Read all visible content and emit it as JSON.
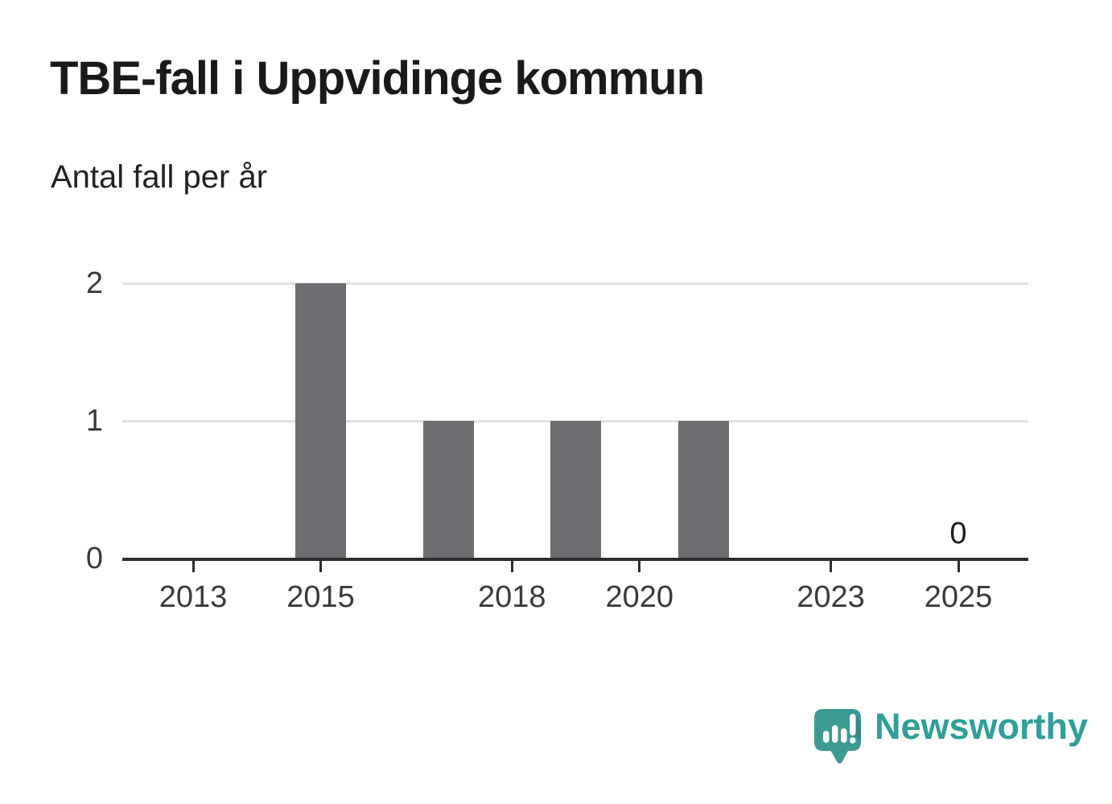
{
  "title": "TBE-fall i Uppvidinge kommun",
  "subtitle": "Antal fall per år",
  "branding": {
    "logo_text": "Newsworthy",
    "logo_icon": "newsworthy-speech-bubble-bar-chart-icon"
  },
  "colors": {
    "bar": "#6e6d71",
    "grid": "#e1e1e1",
    "axis": "#2d2d2d",
    "tick_label": "#3a3a3a",
    "value_label": "#1a1a1a",
    "title": "#1a1a1a",
    "brand_teal": "#3d9a92",
    "brand_text_teal": "#2f9f98",
    "background": "#ffffff"
  },
  "chart_data": {
    "type": "bar",
    "title": "TBE-fall i Uppvidinge kommun",
    "subtitle": "Antal fall per år",
    "xlabel": "",
    "ylabel": "Antal fall per år",
    "categories": [
      2012,
      2013,
      2014,
      2015,
      2016,
      2017,
      2018,
      2019,
      2020,
      2021,
      2022,
      2023,
      2024,
      2025
    ],
    "values": [
      0,
      0,
      0,
      2,
      0,
      1,
      0,
      1,
      0,
      1,
      0,
      0,
      0,
      0
    ],
    "xtick_labels": [
      "2013",
      "2015",
      "2018",
      "2020",
      "2023",
      "2025"
    ],
    "ytick_labels": [
      "0",
      "1",
      "2"
    ],
    "ylim": [
      0,
      2
    ],
    "grid": "horizontal",
    "legend": "none",
    "value_labels": [
      {
        "year": 2025,
        "label": "0"
      }
    ]
  }
}
